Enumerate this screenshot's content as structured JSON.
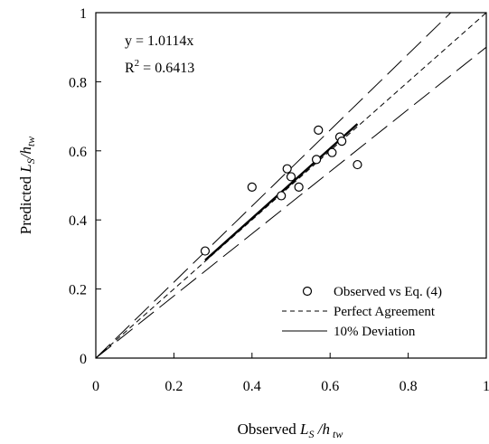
{
  "chart_data": {
    "type": "scatter",
    "title": "",
    "xlabel": {
      "prefix": "Observed ",
      "main": "L",
      "sub1": "S",
      "mid": " /h",
      "sub2": " tw"
    },
    "ylabel": {
      "prefix": "Predicted ",
      "main": "L",
      "sub1": "S",
      "mid": "/h",
      "sub2": "tw"
    },
    "xlim": [
      0,
      1
    ],
    "ylim": [
      0,
      1
    ],
    "xticks": [
      "0",
      "0.2",
      "0.4",
      "0.6",
      "0.8",
      "1"
    ],
    "yticks": [
      "0",
      "0.2",
      "0.4",
      "0.6",
      "0.8",
      "1"
    ],
    "grid": false,
    "equation": "y = 1.0114x",
    "r2_text": {
      "prefix": "R",
      "sup": "2",
      "suffix": " = 0.6413"
    },
    "series": [
      {
        "name": "Observed vs Eq. (4)",
        "kind": "points",
        "marker": "open-circle",
        "x": [
          0.28,
          0.4,
          0.475,
          0.49,
          0.5,
          0.52,
          0.565,
          0.57,
          0.605,
          0.625,
          0.63,
          0.67
        ],
        "y": [
          0.31,
          0.495,
          0.47,
          0.548,
          0.525,
          0.495,
          0.575,
          0.66,
          0.595,
          0.64,
          0.628,
          0.56
        ]
      },
      {
        "name": "Perfect Agreement",
        "kind": "line",
        "style": "dashed",
        "x": [
          0,
          1
        ],
        "y": [
          0,
          1
        ]
      },
      {
        "name": "10% Deviation",
        "kind": "line",
        "style": "long-dash",
        "x": [
          0,
          1
        ],
        "y": [
          0,
          1.1
        ]
      },
      {
        "name": "",
        "kind": "line",
        "style": "long-dash",
        "x": [
          0,
          1
        ],
        "y": [
          0,
          0.9
        ]
      },
      {
        "name": "",
        "kind": "trendline",
        "style": "solid-bold",
        "x": [
          0.28,
          0.67
        ],
        "y": [
          0.2832,
          0.6776
        ]
      }
    ],
    "legend": {
      "position": "bottom-right",
      "items": [
        {
          "label": "Observed vs Eq. (4)",
          "symbol": "circle"
        },
        {
          "label": "Perfect Agreement",
          "symbol": "short-dash"
        },
        {
          "label": "10% Deviation",
          "symbol": "solid"
        }
      ]
    }
  }
}
